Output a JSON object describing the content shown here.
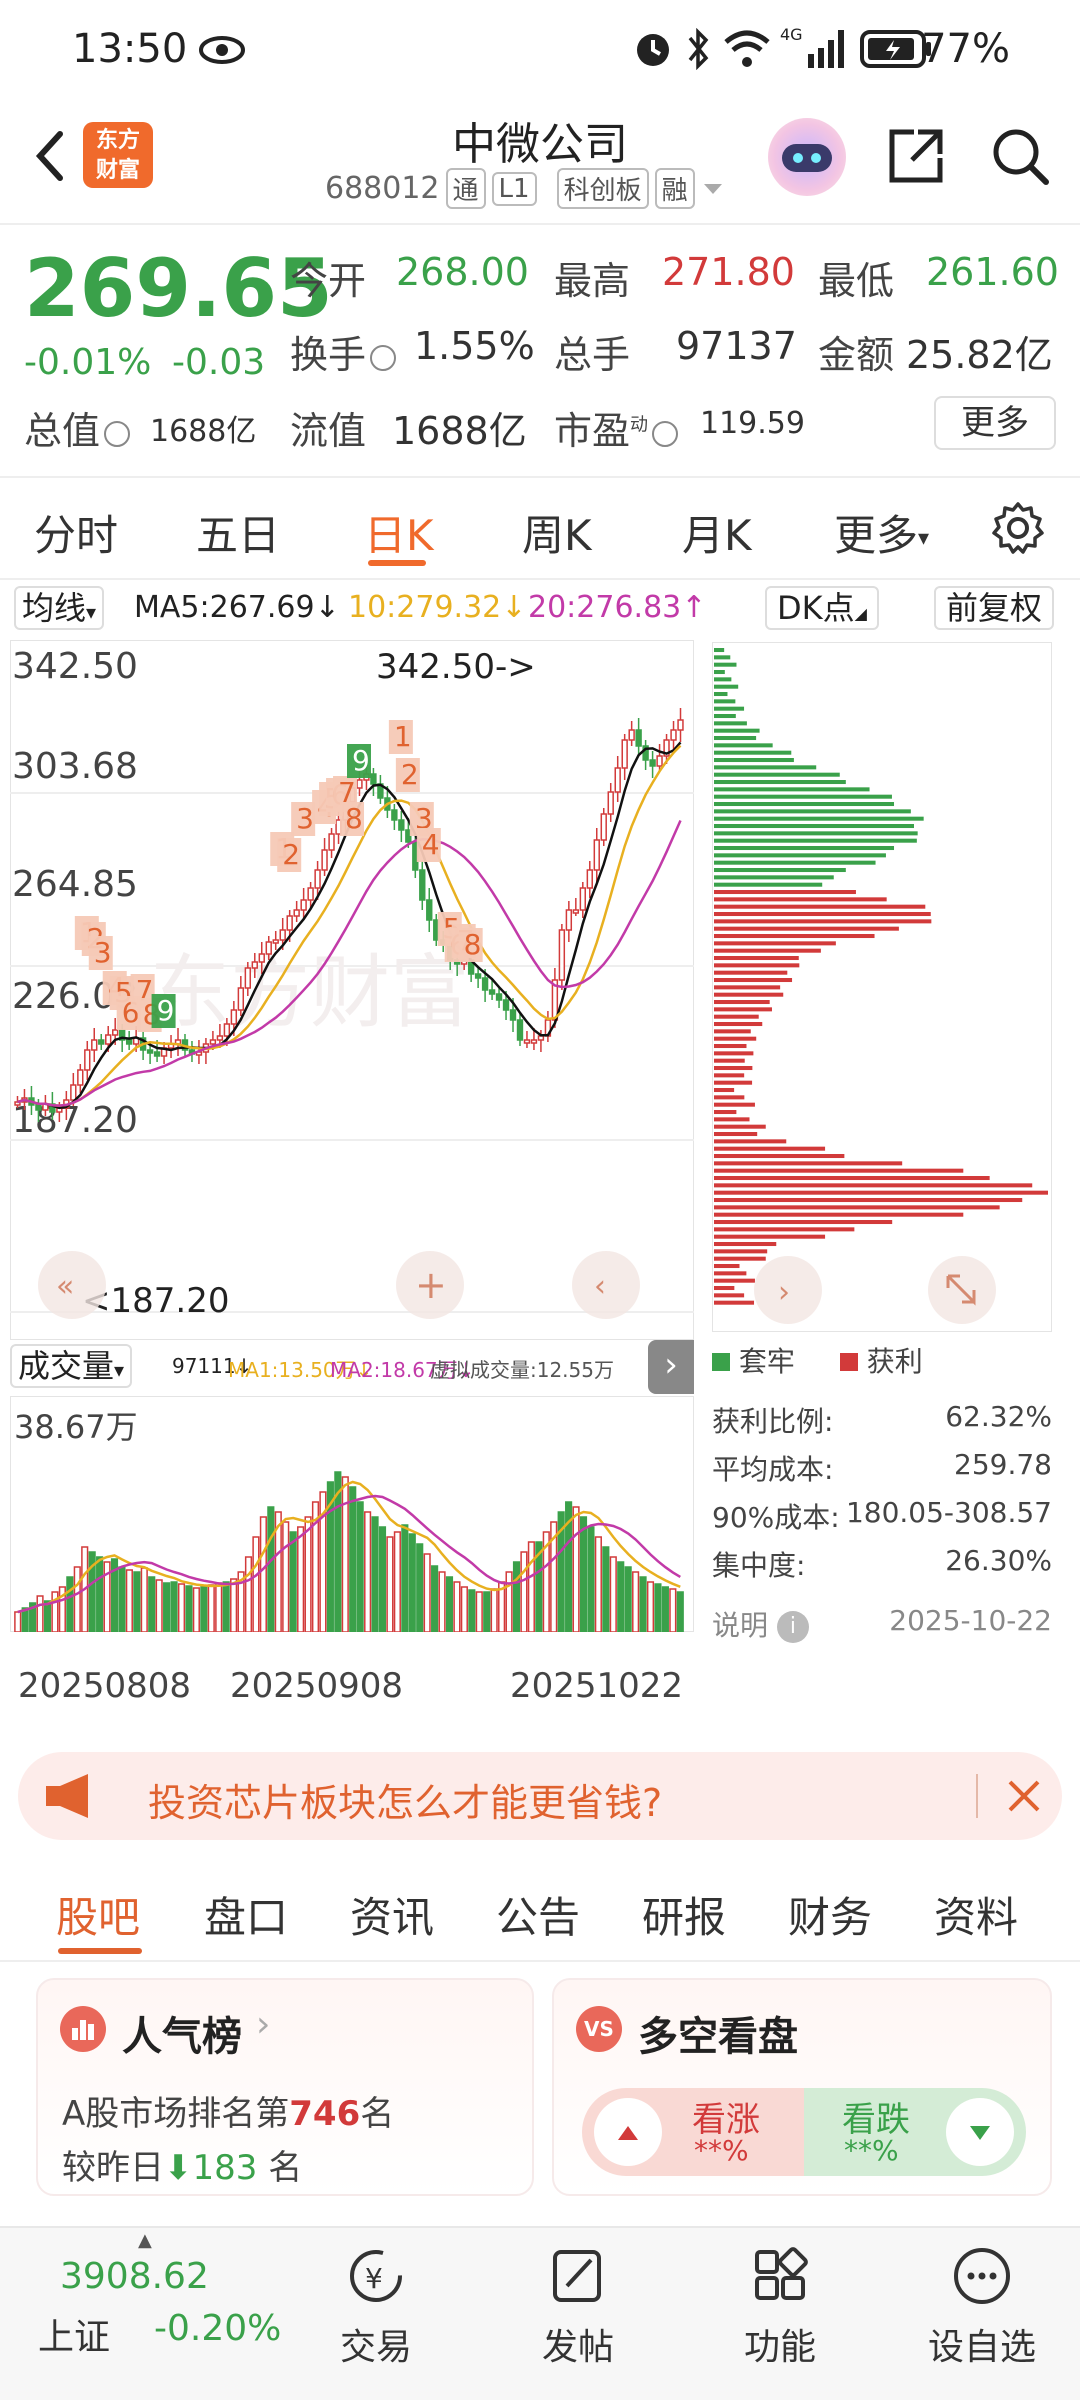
{
  "status_bar": {
    "time": "13:50",
    "battery": "77%"
  },
  "header": {
    "title": "中微公司",
    "code": "688012",
    "tags": [
      "通",
      "L1",
      "科创板",
      "融"
    ],
    "logo_text": [
      "东方",
      "财富"
    ]
  },
  "quote": {
    "price": "269.65",
    "change_pct": "-0.01%",
    "change": "-0.03",
    "open_label": "今开",
    "open": "268.00",
    "high_label": "最高",
    "high": "271.80",
    "low_label": "最低",
    "low": "261.60",
    "turnover_label": "换手",
    "turnover": "1.55%",
    "volume_label": "总手",
    "volume": "97137",
    "amount_label": "金额",
    "amount": "25.82亿",
    "mktcap_label": "总值",
    "mktcap": "1688亿",
    "float_label": "流值",
    "float": "1688亿",
    "pe_label": "市盈",
    "pe_sup": "动",
    "pe": "119.59",
    "more": "更多"
  },
  "period_tabs": [
    "分时",
    "五日",
    "日K",
    "周K",
    "月K",
    "更多"
  ],
  "ma_row": {
    "select": "均线",
    "ma5": "MA5:267.69↓",
    "ma10": "10:279.32↓",
    "ma20": "20:276.83↑",
    "dk": "DK点",
    "fq": "前复权"
  },
  "kchart": {
    "y_labels": [
      "342.50",
      "303.68",
      "264.85",
      "226.03",
      "187.20"
    ],
    "max_label": "342.50->",
    "min_label": "<187.20",
    "watermark": "东方财富"
  },
  "volume": {
    "select": "成交量",
    "info": "97111↓",
    "ma1": "MA1:13.50万↓",
    "ma2": "MA2:18.67万↓",
    "virtual": "虚拟成交量:12.55万",
    "max_label": "38.67万",
    "dates": [
      "20250808",
      "20250908",
      "20251022"
    ]
  },
  "dist_legend": {
    "trapped": "套牢",
    "profit": "获利"
  },
  "dist_stats": [
    {
      "label": "获利比例:",
      "value": "62.32%"
    },
    {
      "label": "平均成本:",
      "value": "259.78"
    },
    {
      "label": "90%成本:",
      "value": "180.05-308.57"
    },
    {
      "label": "集中度:",
      "value": "26.30%"
    }
  ],
  "dist_note": {
    "label": "说明",
    "date": "2025-10-22"
  },
  "promo": {
    "text": "投资芯片板块怎么才能更省钱?"
  },
  "content_tabs": [
    "股吧",
    "盘口",
    "资讯",
    "公告",
    "研报",
    "财务",
    "资料"
  ],
  "popularity": {
    "title": "人气榜",
    "rank_prefix": "A股市场排名第",
    "rank": "746",
    "rank_suffix": "名",
    "diff_prefix": "较昨日",
    "diff": "183",
    "diff_suffix": "名"
  },
  "sentiment": {
    "title": "多空看盘",
    "up": "看涨",
    "up_pct": "**%",
    "down": "看跌",
    "down_pct": "**%"
  },
  "index": {
    "value": "3908.62",
    "name": "上证",
    "change": "-0.20%"
  },
  "bottom_nav": [
    "交易",
    "发帖",
    "功能",
    "设自选"
  ],
  "colors": {
    "up": "#d23a3a",
    "down": "#3aa14a",
    "accent": "#f06a2c",
    "ma5": "#111111",
    "ma10": "#e8b020",
    "ma20": "#c23aa8"
  }
}
